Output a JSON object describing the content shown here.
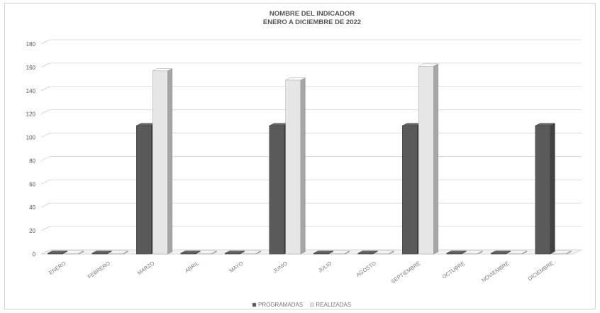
{
  "chart_data": {
    "type": "bar",
    "title": "NOMBRE DEL INDICADOR",
    "subtitle": "ENERO A DICIEMBRE DE 2022",
    "categories": [
      "ENERO",
      "FEBRERO",
      "MARZO",
      "ABRIL",
      "MAYO",
      "JUNIO",
      "JULIO",
      "AGOSTO",
      "SEPTIEMBRE",
      "OCTUBRE",
      "NOVIEMBRE",
      "DICIEMBRE"
    ],
    "series": [
      {
        "name": "PROGRAMADAS",
        "color": "#5a5a5a",
        "values": [
          0,
          0,
          110,
          0,
          0,
          110,
          0,
          0,
          110,
          0,
          0,
          110
        ]
      },
      {
        "name": "REALIZADAS",
        "color": "#e6e6e6",
        "values": [
          0,
          0,
          157,
          0,
          0,
          149,
          0,
          0,
          161,
          0,
          0,
          0
        ]
      }
    ],
    "y_ticks": [
      0,
      20,
      40,
      60,
      80,
      100,
      120,
      140,
      160,
      180
    ],
    "ylim": [
      0,
      180
    ],
    "grid": true,
    "legend": "bottom",
    "style": "3d-clustered-column"
  }
}
